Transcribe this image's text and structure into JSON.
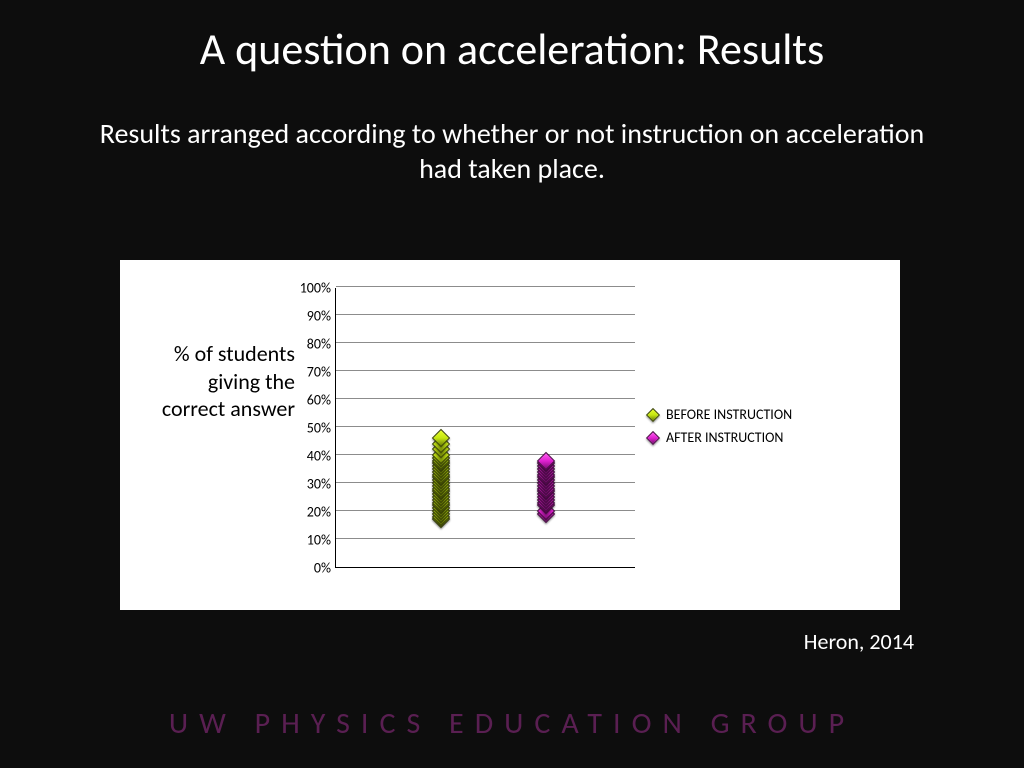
{
  "title": "A question on acceleration: Results",
  "subtitle": "Results arranged according to whether or not instruction on acceleration had taken place.",
  "ylabel": "% of students giving the correct answer",
  "citation": "Heron, 2014",
  "footer": "UW PHYSICS EDUCATION GROUP",
  "chart": {
    "type": "scatter",
    "ylim": [
      0,
      100
    ],
    "ytick_step": 10,
    "ytick_suffix": "%",
    "background_color": "#ffffff",
    "grid_color": "#8c8c8c",
    "axis_color": "#000000",
    "marker_shape": "diamond",
    "marker_size": 13,
    "series": [
      {
        "label": "BEFORE INSTRUCTION",
        "color_light": "#e8ff2a",
        "color_dark": "#6b7d08",
        "border_color": "#3a4405",
        "x_fraction": 0.35,
        "values": [
          17,
          18,
          19,
          20,
          21,
          22,
          23,
          24,
          25,
          26,
          27,
          28,
          29,
          30,
          31,
          32,
          33,
          34,
          35,
          36,
          37,
          38,
          39,
          40,
          42,
          44,
          46
        ]
      },
      {
        "label": "AFTER INSTRUCTION",
        "color_light": "#ff5cf0",
        "color_dark": "#7a0f72",
        "border_color": "#4a0a45",
        "x_fraction": 0.7,
        "values": [
          19,
          20,
          22,
          23,
          24,
          25,
          26,
          27,
          28,
          29,
          30,
          31,
          32,
          33,
          34,
          35,
          36,
          37,
          38
        ]
      }
    ]
  },
  "colors": {
    "slide_bg": "#0d0d0d",
    "text": "#ffffff",
    "footer": "#5a1f52"
  },
  "typography": {
    "title_fontsize": 44,
    "subtitle_fontsize": 28,
    "ylabel_fontsize": 22,
    "tick_fontsize": 14,
    "legend_fontsize": 14,
    "citation_fontsize": 22,
    "footer_fontsize": 30,
    "footer_letterspacing": 11
  }
}
